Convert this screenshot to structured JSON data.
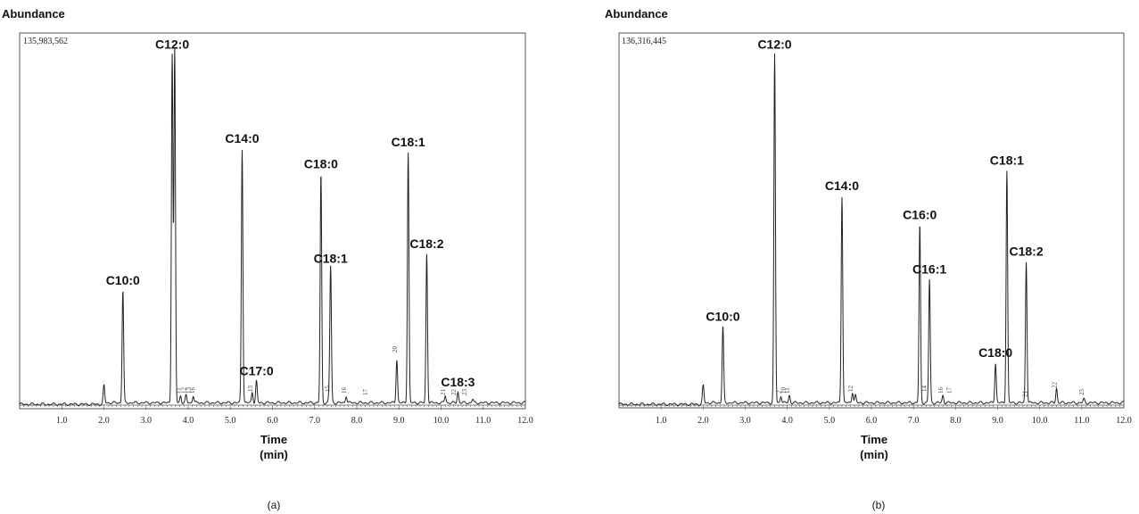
{
  "chart_data": [
    {
      "type": "line",
      "panel_label": "(a)",
      "ylabel": "Abundance",
      "y_max_label": "135,983,562",
      "xlabel_line1": "Time",
      "xlabel_line2": "(min)",
      "xlim": [
        0,
        12.0
      ],
      "x_ticks": [
        {
          "v": 1.0,
          "label": "1.0"
        },
        {
          "v": 2.0,
          "label": "2.0"
        },
        {
          "v": 3.0,
          "label": "3.0"
        },
        {
          "v": 4.0,
          "label": "4.0"
        },
        {
          "v": 5.0,
          "label": "5.0"
        },
        {
          "v": 6.0,
          "label": "6.0"
        },
        {
          "v": 7.0,
          "label": "7.0"
        },
        {
          "v": 8.0,
          "label": "8.0"
        },
        {
          "v": 9.0,
          "label": "9.0"
        },
        {
          "v": 10.0,
          "label": "10.0"
        },
        {
          "v": 11.0,
          "label": "11.0"
        },
        {
          "v": 12.0,
          "label": "12.0"
        }
      ],
      "peaks": [
        {
          "t": 2.0,
          "h": 0.05
        },
        {
          "t": 2.45,
          "h": 0.31,
          "label": "C10:0"
        },
        {
          "t": 3.62,
          "h": 0.96,
          "label": "C12:0"
        },
        {
          "t": 3.68,
          "h": 0.97
        },
        {
          "t": 3.82,
          "h": 0.02
        },
        {
          "t": 3.95,
          "h": 0.02
        },
        {
          "t": 4.12,
          "h": 0.02
        },
        {
          "t": 5.28,
          "h": 0.7,
          "label": "C14:0"
        },
        {
          "t": 5.52,
          "h": 0.03
        },
        {
          "t": 5.62,
          "h": 0.06,
          "label": "C17:0"
        },
        {
          "t": 7.15,
          "h": 0.63,
          "label": "C18:0"
        },
        {
          "t": 7.35,
          "h": 0.03
        },
        {
          "t": 7.38,
          "h": 0.37,
          "label": "C18:1"
        },
        {
          "t": 7.75,
          "h": 0.02
        },
        {
          "t": 8.95,
          "h": 0.12
        },
        {
          "t": 9.22,
          "h": 0.69,
          "label": "C18:1"
        },
        {
          "t": 9.66,
          "h": 0.41,
          "label": "C18:2"
        },
        {
          "t": 10.1,
          "h": 0.02
        },
        {
          "t": 10.4,
          "h": 0.03,
          "label": "C18:3"
        },
        {
          "t": 10.75,
          "h": 0.01
        }
      ],
      "minor_labels": [
        "11",
        "12",
        "13",
        "16",
        "13",
        "15",
        "16",
        "17",
        "20",
        "21",
        "22",
        "23"
      ]
    },
    {
      "type": "line",
      "panel_label": "(b)",
      "ylabel": "Abundance",
      "y_max_label": "136,316,445",
      "xlabel_line1": "Time",
      "xlabel_line2": "(min)",
      "xlim": [
        0,
        12.0
      ],
      "x_ticks": [
        {
          "v": 1.0,
          "label": "1.0"
        },
        {
          "v": 2.0,
          "label": "2.0"
        },
        {
          "v": 3.0,
          "label": "3.0"
        },
        {
          "v": 4.0,
          "label": "4.0"
        },
        {
          "v": 5.0,
          "label": "5.0"
        },
        {
          "v": 6.0,
          "label": "6.0"
        },
        {
          "v": 7.0,
          "label": "7.0"
        },
        {
          "v": 8.0,
          "label": "8.0"
        },
        {
          "v": 9.0,
          "label": "9.0"
        },
        {
          "v": 10.0,
          "label": "10.0"
        },
        {
          "v": 11.0,
          "label": "11.0"
        },
        {
          "v": 12.0,
          "label": "12.0"
        }
      ],
      "peaks": [
        {
          "t": 2.0,
          "h": 0.05
        },
        {
          "t": 2.47,
          "h": 0.21,
          "label": "C10:0"
        },
        {
          "t": 3.7,
          "h": 0.96,
          "label": "C12:0"
        },
        {
          "t": 3.85,
          "h": 0.02
        },
        {
          "t": 4.05,
          "h": 0.02
        },
        {
          "t": 5.3,
          "h": 0.57,
          "label": "C14:0"
        },
        {
          "t": 5.55,
          "h": 0.03
        },
        {
          "t": 5.62,
          "h": 0.02
        },
        {
          "t": 7.15,
          "h": 0.49,
          "label": "C16:0"
        },
        {
          "t": 7.38,
          "h": 0.34,
          "label": "C16:1"
        },
        {
          "t": 7.7,
          "h": 0.02
        },
        {
          "t": 8.95,
          "h": 0.11,
          "label": "C18:0"
        },
        {
          "t": 9.22,
          "h": 0.64,
          "label": "C18:1"
        },
        {
          "t": 9.68,
          "h": 0.39,
          "label": "C18:2"
        },
        {
          "t": 10.4,
          "h": 0.04
        },
        {
          "t": 11.05,
          "h": 0.01
        }
      ],
      "minor_labels": [
        "2",
        "10",
        "11",
        "12",
        "14",
        "16",
        "17",
        "21",
        "22",
        "23"
      ]
    }
  ]
}
